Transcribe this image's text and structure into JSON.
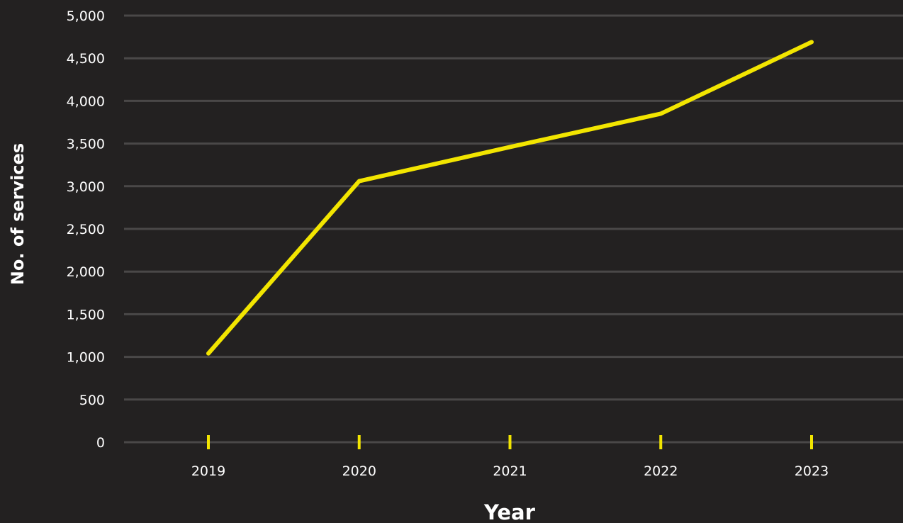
{
  "chart_data": {
    "type": "line",
    "title": "",
    "xlabel": "Year",
    "ylabel": "No. of services",
    "categories": [
      "2019",
      "2020",
      "2021",
      "2022",
      "2023"
    ],
    "series": [
      {
        "values": [
          1040,
          3060,
          3460,
          3850,
          4690
        ]
      }
    ],
    "ylim": [
      0,
      5000
    ],
    "yticks": [
      0,
      500,
      1000,
      1500,
      2000,
      2500,
      3000,
      3500,
      4000,
      4500,
      5000
    ],
    "ytick_labels": [
      "0",
      "500",
      "1,000",
      "1,500",
      "2,000",
      "2,500",
      "3,000",
      "3,500",
      "4,000",
      "4,500",
      "5,000"
    ],
    "grid": true,
    "legend": "none"
  },
  "colors": {
    "background": "#232121",
    "line": "#f2e500",
    "grid": "#4a4848",
    "text": "#ffffff"
  }
}
